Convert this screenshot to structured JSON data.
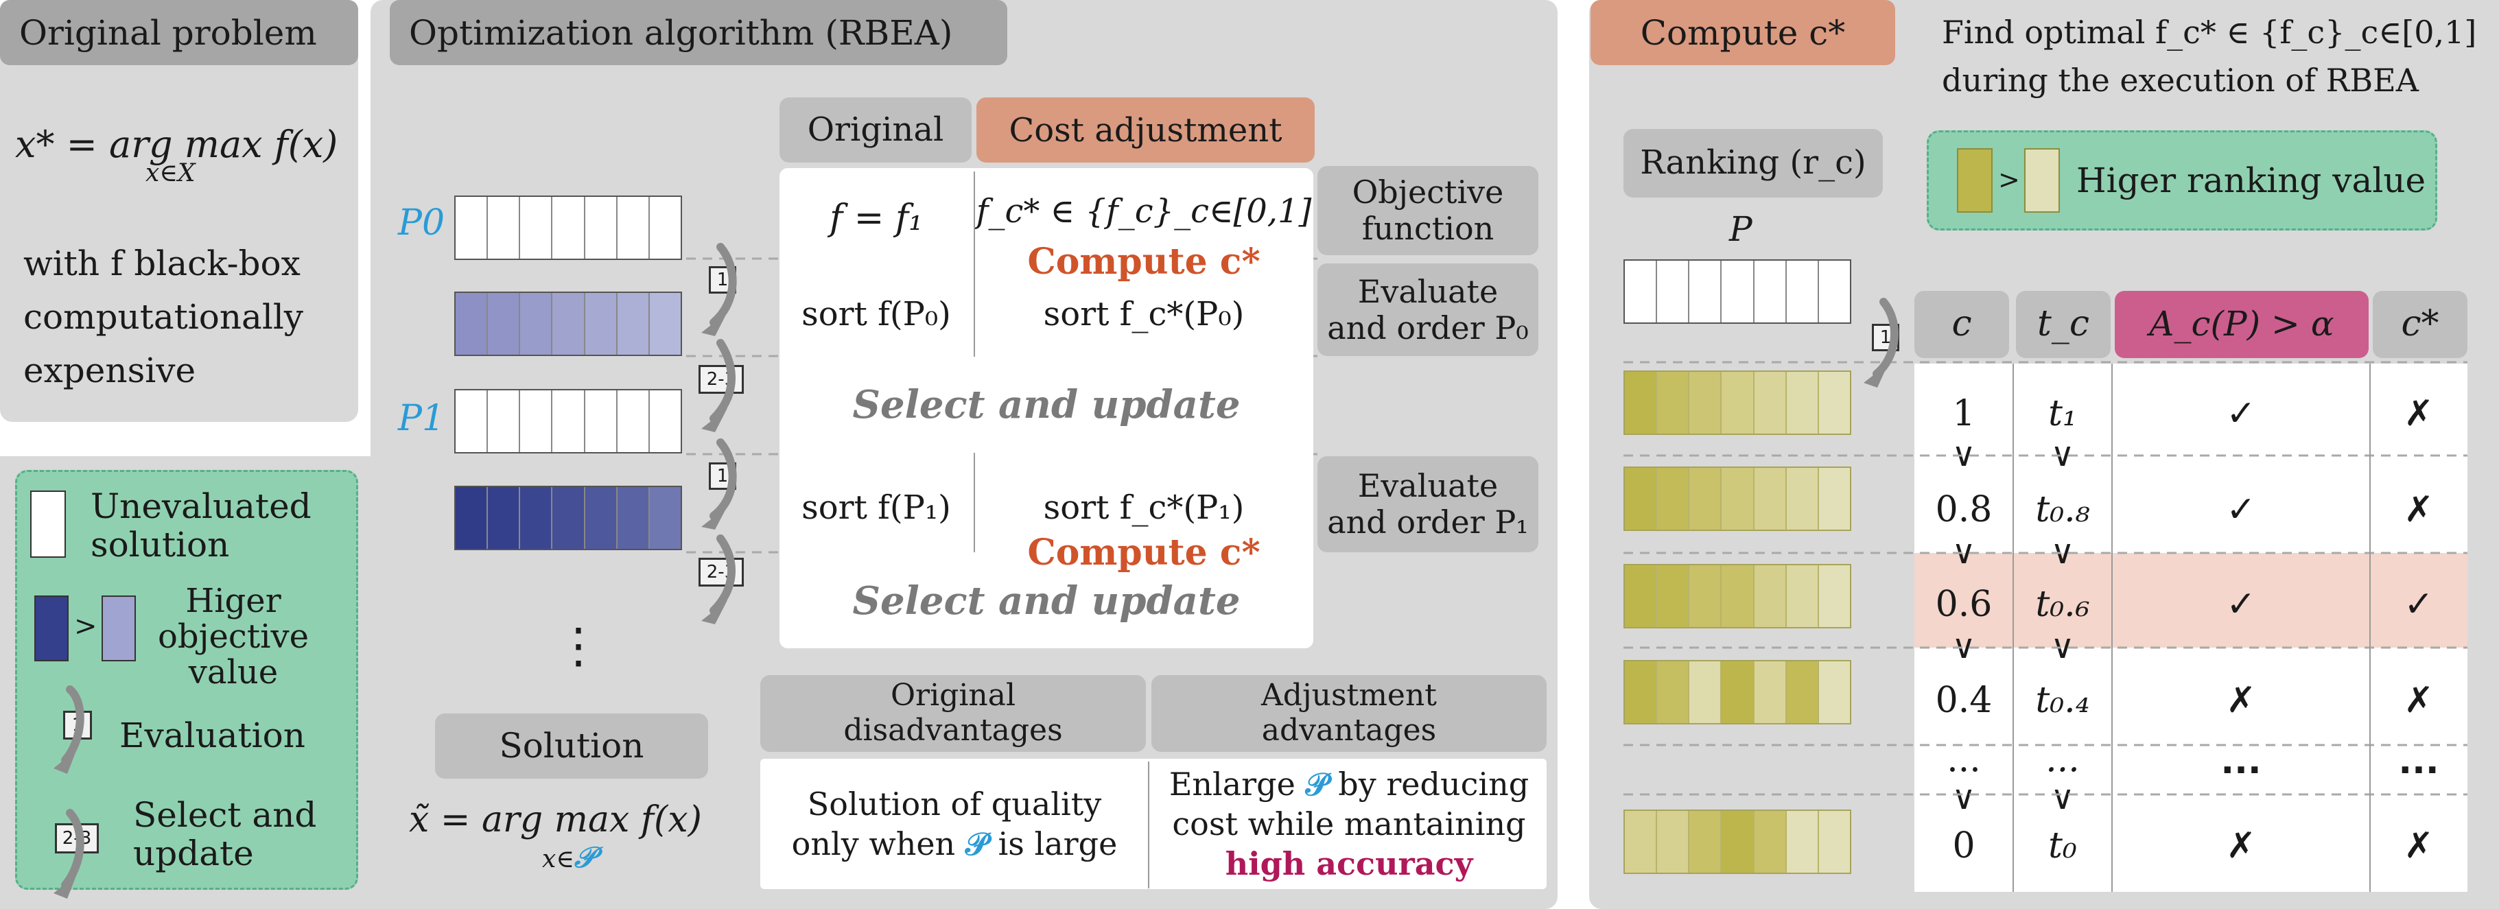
{
  "original_problem": {
    "title": "Original problem",
    "formula": "x* = arg max f(x)",
    "formula_sub": "x∈X",
    "desc": [
      "with f black-box",
      "computationally",
      "expensive"
    ]
  },
  "legend": {
    "unevaluated_line1": "Unevaluated",
    "unevaluated_line2": "solution",
    "gt": ">",
    "higher_obj_line1": "Higer",
    "higher_obj_line2": "objective",
    "higher_obj_line3": "value",
    "badge_eval": "1",
    "evaluation": "Evaluation",
    "badge_select": "2-3",
    "select_line1": "Select and",
    "select_line2": "update"
  },
  "rbea": {
    "title": "Optimization algorithm (RBEA)",
    "p0": "P0",
    "p1": "P1",
    "badge1": "1",
    "badge23": "2-3",
    "vdots": "⋮",
    "solution_label": "Solution",
    "solution_formula": "x̃ = arg max f(x)",
    "solution_sub": "x∈",
    "solution_sub_set": "𝒫",
    "col_original": "Original",
    "col_cost": "Cost adjustment",
    "f_orig": "f = f₁",
    "f_cost": "f_c* ∈ {f_c}_c∈[0,1]",
    "compute1": "Compute c*",
    "sort_orig_p0": "sort f(P₀)",
    "sort_cost_p0": "sort f_c*(P₀)",
    "select1": "Select and update",
    "sort_orig_p1": "sort f(P₁)",
    "sort_cost_p1": "sort f_c*(P₁)",
    "compute2": "Compute c*",
    "select2": "Select and update",
    "side_obj_line1": "Objective",
    "side_obj_line2": "function",
    "side_eval0_line1": "Evaluate",
    "side_eval0_line2": "and order P₀",
    "side_eval1_line1": "Evaluate",
    "side_eval1_line2": "and order P₁",
    "disadv_title_line1": "Original",
    "disadv_title_line2": "disadvantages",
    "adv_title_line1": "Adjustment",
    "adv_title_line2": "advantages",
    "disadv_text_line1": "Solution of quality",
    "disadv_text_line2a": "only when ",
    "disadv_text_set": "𝒫",
    "disadv_text_line2b": " is large",
    "adv_text_line1a": "Enlarge ",
    "adv_text_set": "𝒫",
    "adv_text_line1b": " by reducing",
    "adv_text_line2": "cost while mantaining",
    "adv_text_line3": "high accuracy"
  },
  "compute": {
    "title": "Compute c*",
    "find_line1": "Find optimal f_c* ∈ {f_c}_c∈[0,1]",
    "find_line2": "during the execution of RBEA",
    "ranking": "Ranking (r_c)",
    "legend_gt": ">",
    "legend_text": "Higer ranking value",
    "p_label": "P",
    "badge1": "1",
    "headers": [
      "c",
      "t_c",
      "A_c(P) > α",
      "c*"
    ],
    "rows": [
      {
        "c": "1",
        "t": "t₁",
        "a": "✓",
        "s": "✗"
      },
      {
        "c": "0.8",
        "t": "t₀.₈",
        "a": "✓",
        "s": "✗"
      },
      {
        "c": "0.6",
        "t": "t₀.₆",
        "a": "✓",
        "s": "✓"
      },
      {
        "c": "0.4",
        "t": "t₀.₄",
        "a": "✗",
        "s": "✗"
      },
      {
        "c": "···",
        "t": "···",
        "a": "···",
        "s": "···"
      },
      {
        "c": "0",
        "t": "t₀",
        "a": "✗",
        "s": "✗"
      }
    ],
    "vee": "∨"
  }
}
